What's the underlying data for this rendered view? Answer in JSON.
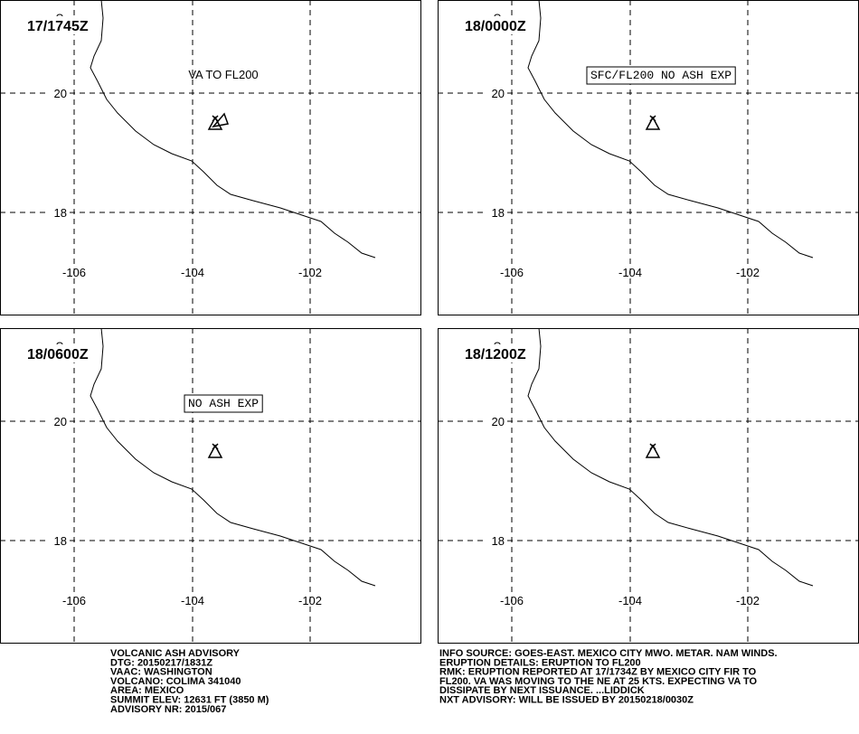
{
  "panels": [
    {
      "time": "17/1745Z",
      "note": "VA TO FL200",
      "lat_labels": [
        "20",
        "18"
      ],
      "lon_labels": [
        "-106",
        "-104",
        "-102"
      ]
    },
    {
      "time": "18/0000Z",
      "note": "SFC/FL200 NO ASH EXP",
      "lat_labels": [
        "20",
        "18"
      ],
      "lon_labels": [
        "-106",
        "-104",
        "-102"
      ]
    },
    {
      "time": "18/0600Z",
      "note": "NO ASH EXP",
      "lat_labels": [
        "20",
        "18"
      ],
      "lon_labels": [
        "-106",
        "-104",
        "-102"
      ]
    },
    {
      "time": "18/1200Z",
      "note": "",
      "lat_labels": [
        "20",
        "18"
      ],
      "lon_labels": [
        "-106",
        "-104",
        "-102"
      ]
    }
  ],
  "advisory_left": [
    "VOLCANIC ASH ADVISORY",
    "DTG: 20150217/1831Z",
    "VAAC: WASHINGTON",
    "VOLCANO: COLIMA 341040",
    "AREA: MEXICO",
    "SUMMIT ELEV: 12631 FT (3850 M)",
    "ADVISORY NR: 2015/067"
  ],
  "advisory_right": [
    "INFO SOURCE: GOES-EAST. MEXICO CITY MWO. METAR. NAM WINDS.",
    "ERUPTION DETAILS: ERUPTION TO FL200",
    "RMK: ERUPTION REPORTED AT 17/1734Z BY MEXICO CITY FIR TO",
    "FL200. VA WAS MOVING TO THE NE AT 25 KTS. EXPECTING VA TO",
    "DISSIPATE BY NEXT ISSUANCE. ...LIDDICK",
    "NXT ADVISORY: WILL BE ISSUED BY 20150218/0030Z"
  ]
}
